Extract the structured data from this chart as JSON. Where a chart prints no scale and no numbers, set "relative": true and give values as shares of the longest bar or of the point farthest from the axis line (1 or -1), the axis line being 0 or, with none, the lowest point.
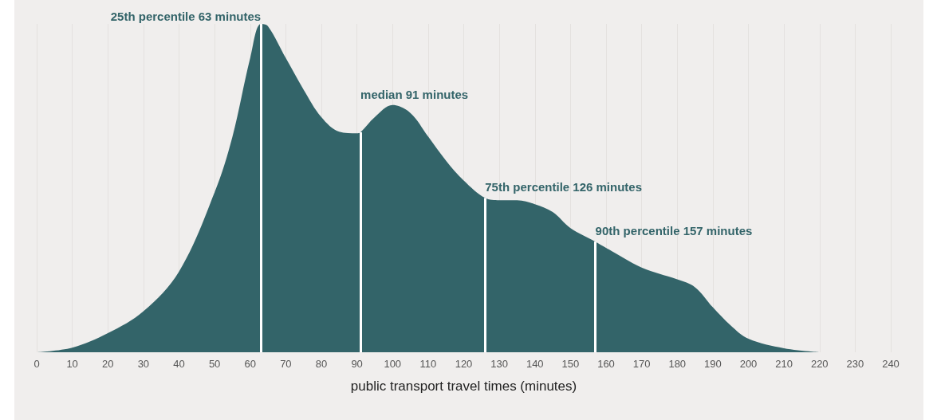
{
  "chart_data": {
    "type": "area",
    "relative": true,
    "xlabel": "public transport travel times (minutes)",
    "x": [
      0,
      10,
      20,
      30,
      40,
      50,
      55,
      60,
      63,
      65,
      70,
      75,
      80,
      85,
      90,
      91,
      95,
      100,
      105,
      110,
      115,
      120,
      126,
      130,
      135,
      140,
      145,
      150,
      157,
      160,
      170,
      180,
      185,
      190,
      195,
      200,
      210,
      220
    ],
    "series": [
      {
        "color": "#336469",
        "values": [
          0,
          0.014,
          0.058,
          0.125,
          0.246,
          0.487,
          0.656,
          0.896,
          1,
          0.993,
          0.896,
          0.8,
          0.716,
          0.672,
          0.667,
          0.67,
          0.716,
          0.753,
          0.729,
          0.657,
          0.584,
          0.523,
          0.47,
          0.463,
          0.463,
          0.451,
          0.427,
          0.378,
          0.337,
          0.318,
          0.258,
          0.222,
          0.198,
          0.137,
          0.082,
          0.041,
          0.012,
          0
        ]
      }
    ],
    "xlim": [
      0,
      240
    ],
    "xticks": [
      0,
      10,
      20,
      30,
      40,
      50,
      60,
      70,
      80,
      90,
      100,
      110,
      120,
      130,
      140,
      150,
      160,
      170,
      180,
      190,
      200,
      210,
      220,
      230,
      240
    ],
    "grid": "x",
    "ref_lines": [
      {
        "axis": "x",
        "value": 63,
        "label": "25th percentile 63 minutes",
        "color": "#ffffff"
      },
      {
        "axis": "x",
        "value": 91,
        "label": "median 91 minutes",
        "color": "#ffffff"
      },
      {
        "axis": "x",
        "value": 126,
        "label": "75th percentile 126 minutes",
        "color": "#ffffff"
      },
      {
        "axis": "x",
        "value": 157,
        "label": "90th percentile 157 minutes",
        "color": "#ffffff"
      }
    ]
  }
}
